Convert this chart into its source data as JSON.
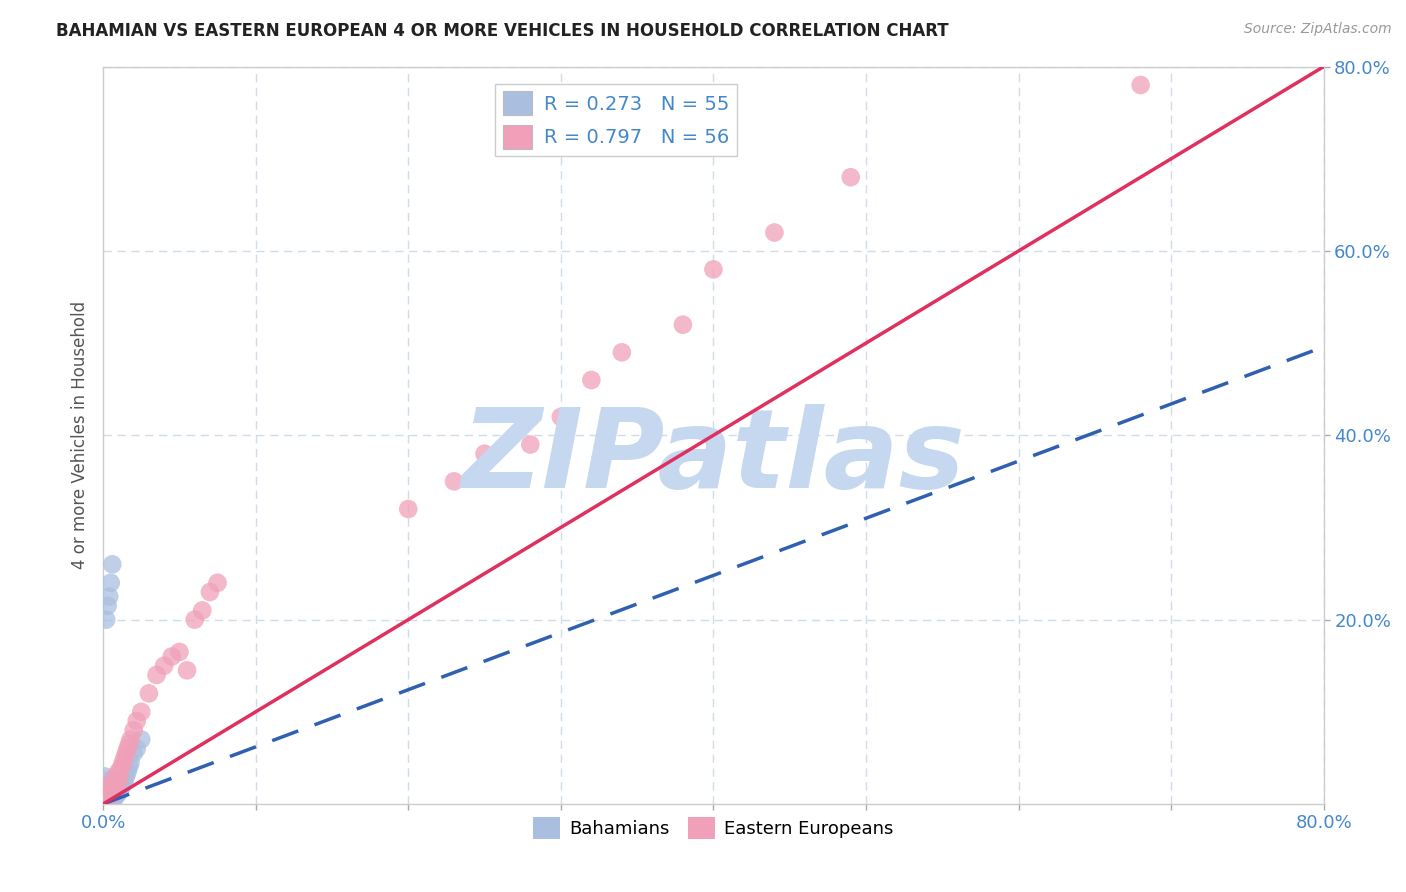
{
  "title": "BAHAMIAN VS EASTERN EUROPEAN 4 OR MORE VEHICLES IN HOUSEHOLD CORRELATION CHART",
  "source": "Source: ZipAtlas.com",
  "ylabel": "4 or more Vehicles in Household",
  "xlim": [
    0.0,
    0.8
  ],
  "ylim": [
    0.0,
    0.8
  ],
  "xticks": [
    0.0,
    0.1,
    0.2,
    0.3,
    0.4,
    0.5,
    0.6,
    0.7,
    0.8
  ],
  "xticklabels": [
    "0.0%",
    "",
    "",
    "",
    "",
    "",
    "",
    "",
    "80.0%"
  ],
  "yticks": [
    0.2,
    0.4,
    0.6,
    0.8
  ],
  "yticklabels": [
    "20.0%",
    "40.0%",
    "60.0%",
    "80.0%"
  ],
  "bahamian_color": "#aabfdf",
  "eastern_color": "#f0a0b8",
  "bahamian_line_color": "#3060b0",
  "eastern_line_color": "#e03060",
  "bahamian_R": 0.273,
  "bahamian_N": 55,
  "eastern_R": 0.797,
  "eastern_N": 56,
  "watermark": "ZIPatlas",
  "watermark_color": "#c5d8f0",
  "background_color": "#ffffff",
  "grid_color": "#d0dce8",
  "bah_line_slope": 0.62,
  "east_line_slope": 1.0,
  "bah_line_xmax": 0.8,
  "east_line_xmax": 0.8,
  "bahamian_x": [
    0.001,
    0.001,
    0.001,
    0.001,
    0.001,
    0.002,
    0.002,
    0.002,
    0.002,
    0.003,
    0.003,
    0.003,
    0.003,
    0.004,
    0.004,
    0.004,
    0.005,
    0.005,
    0.005,
    0.006,
    0.006,
    0.007,
    0.007,
    0.008,
    0.008,
    0.009,
    0.009,
    0.01,
    0.01,
    0.011,
    0.012,
    0.013,
    0.014,
    0.015,
    0.016,
    0.017,
    0.018,
    0.02,
    0.022,
    0.025,
    0.002,
    0.003,
    0.004,
    0.005,
    0.006,
    0.001,
    0.002,
    0.003,
    0.001,
    0.002,
    0.001,
    0.001,
    0.002,
    0.003,
    0.004
  ],
  "bahamian_y": [
    0.001,
    0.002,
    0.003,
    0.01,
    0.015,
    0.002,
    0.005,
    0.008,
    0.02,
    0.003,
    0.006,
    0.012,
    0.025,
    0.004,
    0.01,
    0.018,
    0.003,
    0.008,
    0.015,
    0.005,
    0.012,
    0.006,
    0.014,
    0.008,
    0.016,
    0.01,
    0.02,
    0.012,
    0.022,
    0.015,
    0.018,
    0.022,
    0.025,
    0.03,
    0.035,
    0.04,
    0.045,
    0.055,
    0.06,
    0.07,
    0.2,
    0.215,
    0.225,
    0.24,
    0.26,
    0.001,
    0.003,
    0.005,
    0.007,
    0.012,
    0.02,
    0.03,
    0.002,
    0.004,
    0.008
  ],
  "eastern_x": [
    0.001,
    0.001,
    0.001,
    0.001,
    0.002,
    0.002,
    0.002,
    0.003,
    0.003,
    0.003,
    0.004,
    0.004,
    0.005,
    0.005,
    0.006,
    0.006,
    0.007,
    0.007,
    0.008,
    0.008,
    0.009,
    0.01,
    0.01,
    0.011,
    0.012,
    0.013,
    0.014,
    0.015,
    0.016,
    0.017,
    0.018,
    0.02,
    0.022,
    0.025,
    0.03,
    0.035,
    0.04,
    0.045,
    0.05,
    0.055,
    0.06,
    0.065,
    0.07,
    0.075,
    0.2,
    0.23,
    0.25,
    0.28,
    0.3,
    0.32,
    0.34,
    0.38,
    0.4,
    0.44,
    0.49,
    0.68
  ],
  "eastern_y": [
    0.001,
    0.005,
    0.01,
    0.015,
    0.003,
    0.008,
    0.015,
    0.005,
    0.01,
    0.02,
    0.008,
    0.015,
    0.01,
    0.018,
    0.012,
    0.02,
    0.015,
    0.025,
    0.018,
    0.03,
    0.02,
    0.025,
    0.035,
    0.03,
    0.04,
    0.045,
    0.05,
    0.055,
    0.06,
    0.065,
    0.07,
    0.08,
    0.09,
    0.1,
    0.12,
    0.14,
    0.15,
    0.16,
    0.165,
    0.145,
    0.2,
    0.21,
    0.23,
    0.24,
    0.32,
    0.35,
    0.38,
    0.39,
    0.42,
    0.46,
    0.49,
    0.52,
    0.58,
    0.62,
    0.68,
    0.78
  ]
}
